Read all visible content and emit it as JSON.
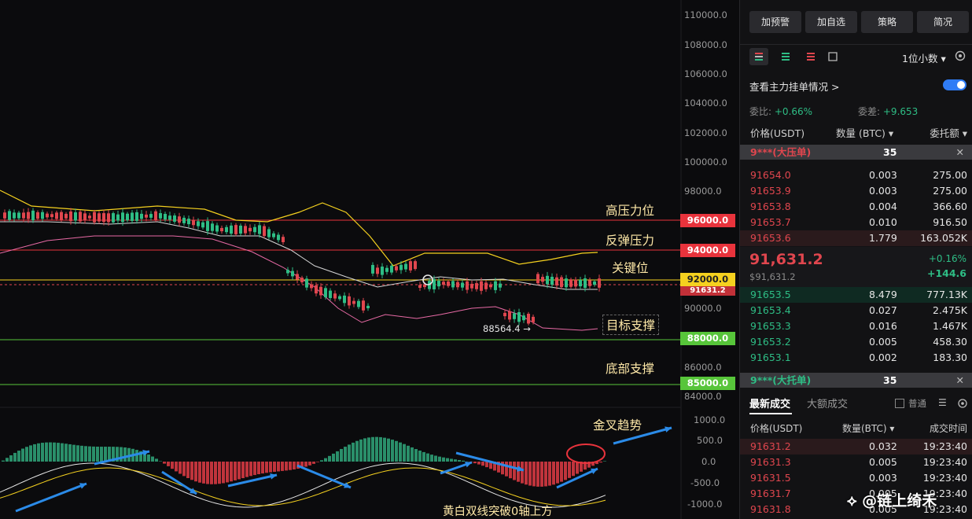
{
  "chart": {
    "y_axis_labels": [
      "110000.0",
      "108000.0",
      "106000.0",
      "104000.0",
      "102000.0",
      "100000.0",
      "98000.0",
      "90000.0",
      "86000.0",
      "84000.0"
    ],
    "macd_axis_labels": [
      "1000.0",
      "500.0",
      "0.0",
      "-500.0",
      "-1000.0"
    ],
    "price_levels": [
      {
        "price": "96000.0",
        "label": "高压力位",
        "color": "#e8333c"
      },
      {
        "price": "94000.0",
        "label": "反弹压力",
        "color": "#e8333c"
      },
      {
        "price": "92000.0",
        "label": "关键位",
        "color": "#f5d11f"
      },
      {
        "price": "88000.0",
        "label": "目标支撑",
        "color": "#57c53a"
      },
      {
        "price": "85000.0",
        "label": "底部支撑",
        "color": "#57c53a"
      }
    ],
    "current_price_tag": "91631.2",
    "low_marker": "88564.4 →",
    "macd_annotation_top": "金叉趋势",
    "macd_annotation_bottom": "黄白双线突破0轴上方"
  },
  "panel": {
    "buttons": [
      "加预警",
      "加自选",
      "策略",
      "简况"
    ],
    "decimal_select": "1位小数",
    "depth_link": "查看主力挂单情况 >",
    "ratio_label": "委比:",
    "ratio_value": "+0.66%",
    "diff_label": "委差:",
    "diff_value": "+9.653",
    "headers": {
      "price": "价格(USDT)",
      "qty": "数量 (BTC)",
      "amount": "委托额"
    },
    "sell_banner": {
      "label": "9***(大压单)",
      "value": "35"
    },
    "asks": [
      {
        "price": "91654.0",
        "qty": "0.003",
        "amount": "275.00"
      },
      {
        "price": "91653.9",
        "qty": "0.003",
        "amount": "275.00"
      },
      {
        "price": "91653.8",
        "qty": "0.004",
        "amount": "366.60"
      },
      {
        "price": "91653.7",
        "qty": "0.010",
        "amount": "916.50"
      },
      {
        "price": "91653.6",
        "qty": "1.779",
        "amount": "163.052K"
      }
    ],
    "last_price": "91,631.2",
    "last_price_sub": "$91,631.2",
    "change_pct": "+0.16%",
    "change_abs": "+144.6",
    "bids": [
      {
        "price": "91653.5",
        "qty": "8.479",
        "amount": "777.13K"
      },
      {
        "price": "91653.4",
        "qty": "0.027",
        "amount": "2.475K"
      },
      {
        "price": "91653.3",
        "qty": "0.016",
        "amount": "1.467K"
      },
      {
        "price": "91653.2",
        "qty": "0.005",
        "amount": "458.30"
      },
      {
        "price": "91653.1",
        "qty": "0.002",
        "amount": "183.30"
      }
    ],
    "buy_banner": {
      "label": "9***(大托单)",
      "value": "35"
    },
    "trade_tabs": [
      "最新成交",
      "大额成交"
    ],
    "trade_option": "普通",
    "trade_headers": {
      "price": "价格(USDT)",
      "qty": "数量(BTC)",
      "time": "成交时间"
    },
    "trades": [
      {
        "price": "91631.2",
        "qty": "0.032",
        "time": "19:23:40"
      },
      {
        "price": "91631.3",
        "qty": "0.005",
        "time": "19:23:40"
      },
      {
        "price": "91631.5",
        "qty": "0.003",
        "time": "19:23:40"
      },
      {
        "price": "91631.7",
        "qty": "0.005",
        "time": "19:23:40"
      },
      {
        "price": "91631.8",
        "qty": "0.005",
        "time": "19:23:40"
      }
    ],
    "watermark": "链上绮禾",
    "colors": {
      "up": "#2ebd85",
      "down": "#e0464e",
      "accent": "#2f7cf6"
    }
  }
}
